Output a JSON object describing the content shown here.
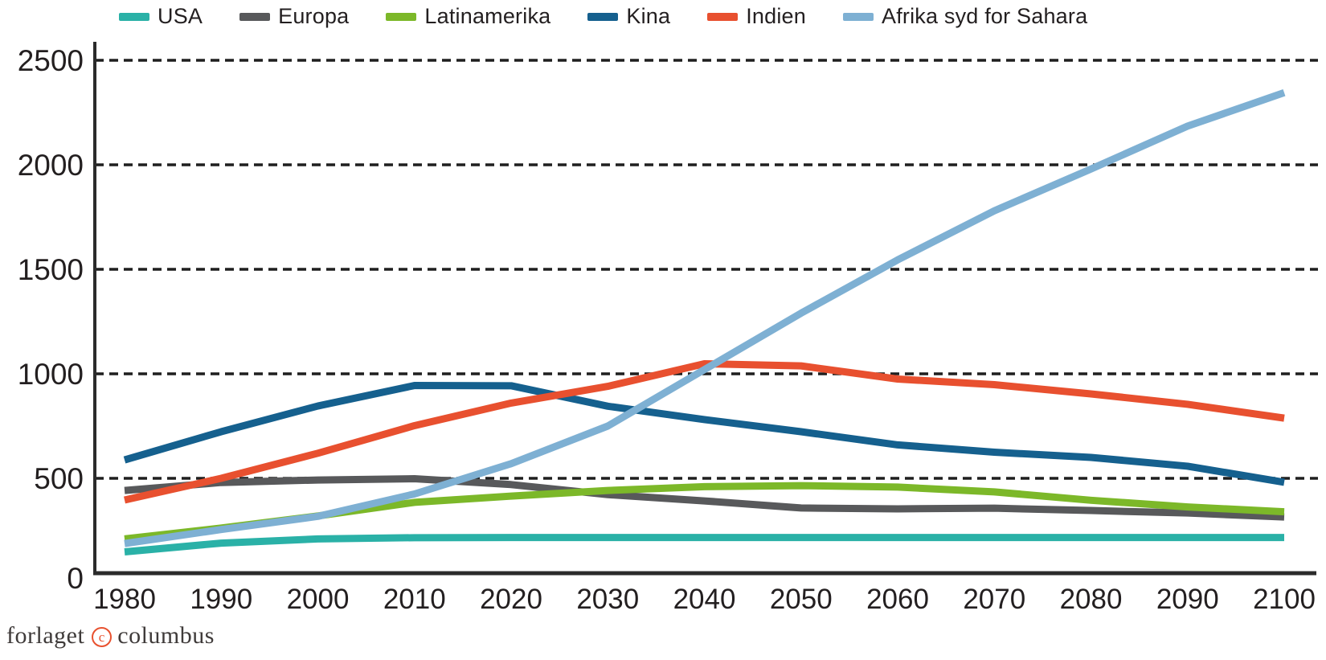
{
  "footer": {
    "publisher_prefix": "forlaget",
    "copyright_symbol": "c",
    "publisher_suffix": "columbus"
  },
  "colors": {
    "axis": "#2b2b2b",
    "gridline": "#1f1f1f",
    "tick_text": "#231f20",
    "copyright_accent": "#e8512f"
  },
  "chart_data": {
    "type": "line",
    "x": [
      1980,
      1990,
      2000,
      2010,
      2020,
      2030,
      2040,
      2050,
      2060,
      2070,
      2080,
      2090,
      2100
    ],
    "series": [
      {
        "name": "USA",
        "color": "#2ab1a7",
        "values": [
          148,
          190,
          210,
          216,
          217,
          217,
          217,
          217,
          217,
          217,
          217,
          217,
          217
        ]
      },
      {
        "name": "Europa",
        "color": "#58595b",
        "values": [
          442,
          480,
          492,
          498,
          470,
          422,
          392,
          358,
          354,
          357,
          346,
          334,
          315
        ]
      },
      {
        "name": "Latinamerika",
        "color": "#7cb829",
        "values": [
          210,
          262,
          320,
          385,
          415,
          442,
          460,
          465,
          458,
          435,
          395,
          363,
          340
        ]
      },
      {
        "name": "Kina",
        "color": "#15608e",
        "values": [
          588,
          723,
          846,
          944,
          943,
          845,
          781,
          723,
          660,
          625,
          600,
          558,
          481
        ]
      },
      {
        "name": "Indien",
        "color": "#e8502f",
        "values": [
          396,
          500,
          620,
          752,
          860,
          940,
          1048,
          1038,
          975,
          948,
          904,
          854,
          788
        ]
      },
      {
        "name": "Afrika syd for Sahara",
        "color": "#7eb0d3",
        "values": [
          188,
          255,
          318,
          425,
          570,
          750,
          1020,
          1290,
          1545,
          1780,
          1980,
          2185,
          2345
        ]
      }
    ],
    "title": "",
    "xlabel": "",
    "ylabel": "",
    "ylim": [
      0,
      2500
    ],
    "yticks": [
      0,
      500,
      1000,
      1500,
      2000,
      2500
    ],
    "grid": "horizontal-dotted",
    "legend_position": "top"
  }
}
